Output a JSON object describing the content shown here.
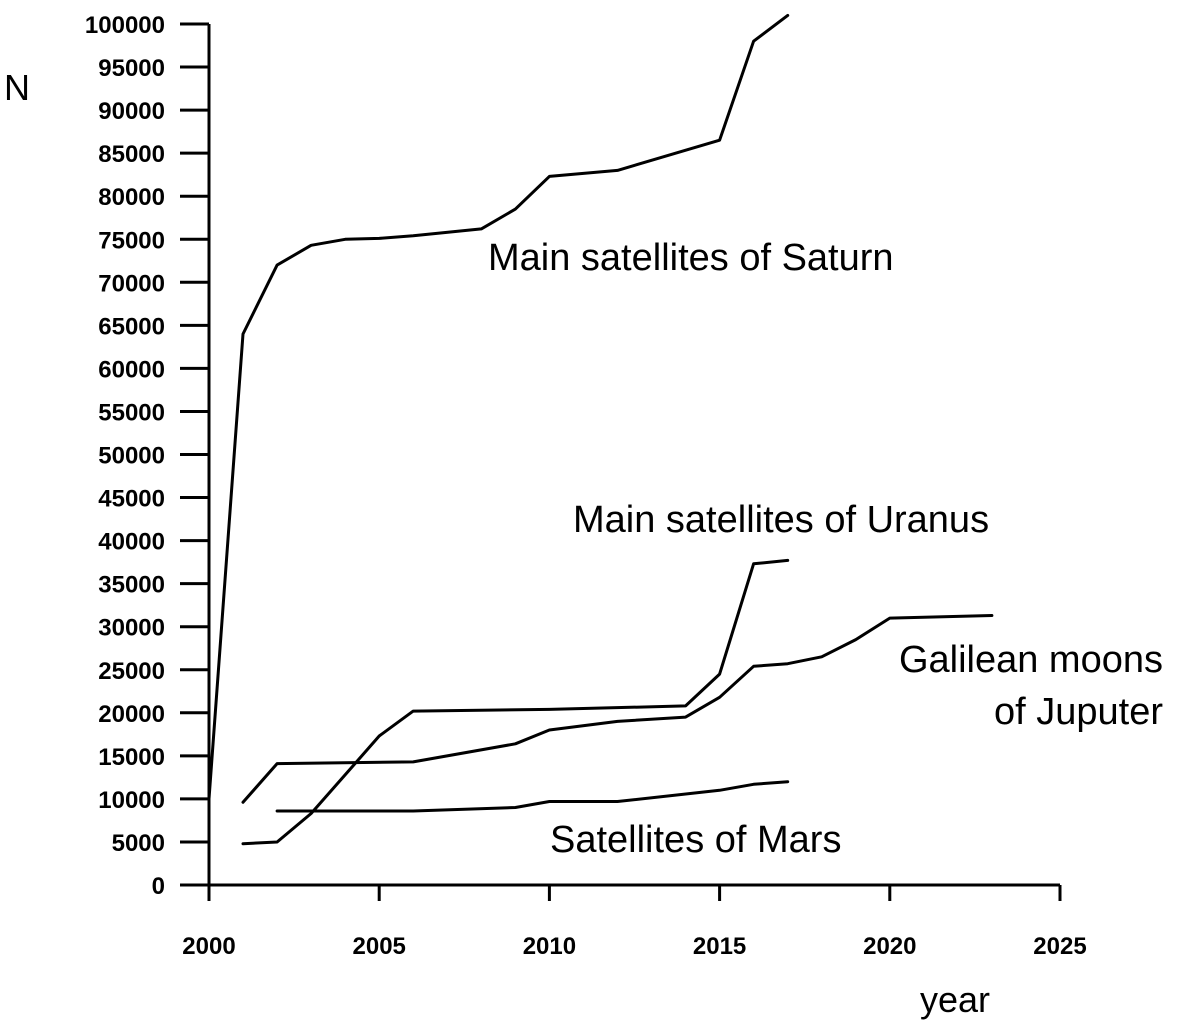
{
  "chart_data": {
    "type": "line",
    "title": "",
    "xlabel": "year",
    "ylabel": "N",
    "xlim": [
      2000,
      2025
    ],
    "ylim": [
      0,
      100000
    ],
    "x_ticks": [
      2000,
      2005,
      2010,
      2015,
      2020,
      2025
    ],
    "y_ticks": [
      0,
      5000,
      10000,
      15000,
      20000,
      25000,
      30000,
      35000,
      40000,
      45000,
      50000,
      55000,
      60000,
      65000,
      70000,
      75000,
      80000,
      85000,
      90000,
      95000,
      100000
    ],
    "grid": false,
    "legend": "none",
    "series": [
      {
        "name": "Main satellites of Saturn",
        "label_lines": [
          "Main satellites of Saturn"
        ],
        "points": [
          [
            2000,
            10000
          ],
          [
            2001,
            64000
          ],
          [
            2002,
            72000
          ],
          [
            2003,
            74300
          ],
          [
            2004,
            75000
          ],
          [
            2005,
            75100
          ],
          [
            2006,
            75400
          ],
          [
            2008,
            76200
          ],
          [
            2009,
            78500
          ],
          [
            2010,
            82300
          ],
          [
            2012,
            83000
          ],
          [
            2015,
            86500
          ],
          [
            2016,
            98000
          ],
          [
            2017,
            101000
          ]
        ]
      },
      {
        "name": "Main satellites of Uranus",
        "label_lines": [
          "Main satellites of Uranus"
        ],
        "points": [
          [
            2001,
            4800
          ],
          [
            2002,
            5000
          ],
          [
            2003,
            8300
          ],
          [
            2004,
            12800
          ],
          [
            2005,
            17300
          ],
          [
            2006,
            20200
          ],
          [
            2010,
            20400
          ],
          [
            2014,
            20800
          ],
          [
            2015,
            24500
          ],
          [
            2016,
            37300
          ],
          [
            2017,
            37700
          ]
        ]
      },
      {
        "name": "Galilean moons of Juputer",
        "label_lines": [
          "Galilean moons",
          "of Juputer"
        ],
        "points": [
          [
            2001,
            9600
          ],
          [
            2002,
            14100
          ],
          [
            2006,
            14300
          ],
          [
            2009,
            16400
          ],
          [
            2010,
            18000
          ],
          [
            2012,
            19000
          ],
          [
            2014,
            19500
          ],
          [
            2015,
            21800
          ],
          [
            2016,
            25400
          ],
          [
            2017,
            25700
          ],
          [
            2018,
            26500
          ],
          [
            2019,
            28500
          ],
          [
            2020,
            31000
          ],
          [
            2023,
            31300
          ]
        ]
      },
      {
        "name": "Satellites of Mars",
        "label_lines": [
          "Satellites of Mars"
        ],
        "points": [
          [
            2002,
            8600
          ],
          [
            2006,
            8600
          ],
          [
            2009,
            9000
          ],
          [
            2010,
            9700
          ],
          [
            2012,
            9700
          ],
          [
            2015,
            11000
          ],
          [
            2016,
            11700
          ],
          [
            2017,
            12000
          ]
        ]
      }
    ]
  }
}
